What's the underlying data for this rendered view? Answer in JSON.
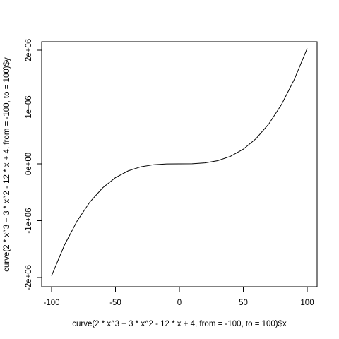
{
  "chart_data": {
    "type": "line",
    "title": "",
    "xlabel": "curve(2 * x^3 + 3 * x^2 - 12 * x + 4, from = -100, to = 100)$x",
    "ylabel": "curve(2 * x^3 + 3 * x^2 - 12 * x + 4, from = -100, to = 100)$y",
    "xlim": [
      -100,
      100
    ],
    "ylim": [
      -2000000,
      2000000
    ],
    "x_ticks": [
      -100,
      -50,
      0,
      50,
      100
    ],
    "x_tick_labels": [
      "-100",
      "-50",
      "0",
      "50",
      "100"
    ],
    "y_ticks": [
      -2000000,
      -1000000,
      0,
      1000000,
      2000000
    ],
    "y_tick_labels": [
      "-2e+06",
      "-1e+06",
      "0e+00",
      "1e+06",
      "2e+06"
    ],
    "grid": false,
    "series": [
      {
        "color": "#000000",
        "x": [
          -100,
          -90,
          -80,
          -70,
          -60,
          -50,
          -40,
          -30,
          -20,
          -10,
          0,
          10,
          20,
          30,
          40,
          50,
          60,
          70,
          80,
          90,
          100
        ],
        "y": [
          -1969996,
          -1433456,
          -1004636,
          -671156,
          -421076,
          -242396,
          -122716,
          -50636,
          -14756,
          -1676,
          4,
          2184,
          16964,
          56444,
          132724,
          257904,
          444084,
          703364,
          1047844,
          1489624,
          2030804
        ]
      }
    ]
  }
}
